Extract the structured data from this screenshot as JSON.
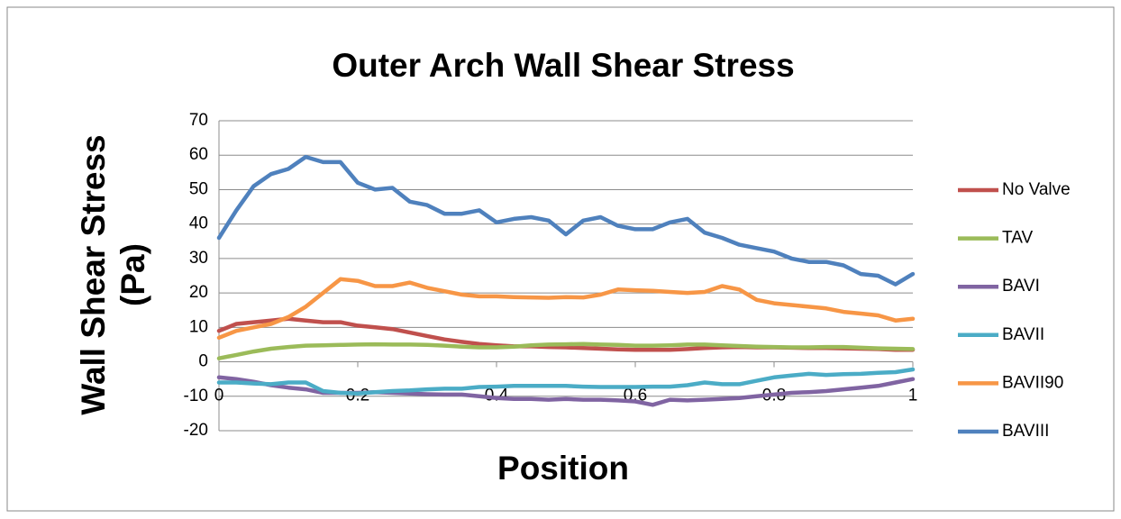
{
  "chart_data": {
    "type": "line",
    "title": "Outer Arch Wall Shear Stress",
    "xlabel": "Position",
    "ylabel": "Wall Shear Stress (Pa)",
    "x": [
      0,
      0.025,
      0.05,
      0.075,
      0.1,
      0.125,
      0.15,
      0.175,
      0.2,
      0.225,
      0.25,
      0.275,
      0.3,
      0.325,
      0.35,
      0.375,
      0.4,
      0.425,
      0.45,
      0.475,
      0.5,
      0.525,
      0.55,
      0.575,
      0.6,
      0.625,
      0.65,
      0.675,
      0.7,
      0.725,
      0.75,
      0.775,
      0.8,
      0.825,
      0.85,
      0.875,
      0.9,
      0.925,
      0.95,
      0.975,
      1
    ],
    "series": [
      {
        "name": "No Valve",
        "color": "#c0504d",
        "values": [
          9,
          11,
          11.5,
          12,
          12.5,
          12,
          11.5,
          11.5,
          10.5,
          10,
          9.5,
          8.5,
          7.5,
          6.5,
          5.8,
          5.2,
          4.8,
          4.5,
          4.5,
          4.3,
          4.2,
          4,
          3.8,
          3.6,
          3.5,
          3.5,
          3.5,
          3.7,
          4,
          4.2,
          4.3,
          4.2,
          4.2,
          4.1,
          4,
          4,
          3.9,
          3.8,
          3.7,
          3.5,
          3.5
        ]
      },
      {
        "name": "TAV",
        "color": "#9bbb59",
        "values": [
          1,
          2,
          3,
          3.8,
          4.3,
          4.7,
          4.8,
          4.9,
          5,
          5.1,
          5,
          5,
          4.9,
          4.7,
          4.4,
          4.2,
          4.2,
          4.4,
          4.8,
          5,
          5.1,
          5.2,
          5,
          4.9,
          4.7,
          4.7,
          4.8,
          5,
          5,
          4.8,
          4.6,
          4.4,
          4.3,
          4.2,
          4.2,
          4.3,
          4.3,
          4.1,
          3.9,
          3.8,
          3.7
        ]
      },
      {
        "name": "BAVI",
        "color": "#8064a2",
        "values": [
          -4.5,
          -5,
          -5.8,
          -6.8,
          -7.5,
          -8,
          -9,
          -9,
          -9,
          -8.8,
          -9,
          -9.2,
          -9.4,
          -9.5,
          -9.5,
          -10,
          -10.5,
          -10.8,
          -10.8,
          -11,
          -10.8,
          -11,
          -11,
          -11.2,
          -11.5,
          -12.5,
          -11,
          -11.2,
          -11,
          -10.8,
          -10.5,
          -10,
          -9.5,
          -9,
          -8.8,
          -8.5,
          -8,
          -7.5,
          -7,
          -6,
          -5
        ]
      },
      {
        "name": "BAVII",
        "color": "#4bacc6",
        "values": [
          -6,
          -6,
          -6.3,
          -6.5,
          -6,
          -6,
          -8.5,
          -9,
          -9.2,
          -8.8,
          -8.5,
          -8.3,
          -8,
          -7.8,
          -7.8,
          -7.3,
          -7.2,
          -7,
          -7,
          -7,
          -7,
          -7.2,
          -7.3,
          -7.3,
          -7.3,
          -7.2,
          -7.2,
          -6.8,
          -6,
          -6.5,
          -6.5,
          -5.5,
          -4.5,
          -4,
          -3.5,
          -3.8,
          -3.6,
          -3.5,
          -3.2,
          -3,
          -2.2
        ]
      },
      {
        "name": "BAVII90",
        "color": "#f79646",
        "values": [
          7,
          9,
          10,
          11,
          13,
          16,
          20,
          24,
          23.5,
          22,
          22,
          23,
          21.5,
          20.5,
          19.5,
          19,
          19,
          18.8,
          18.7,
          18.6,
          18.8,
          18.7,
          19.5,
          21,
          20.8,
          20.6,
          20.3,
          20,
          20.3,
          22,
          21,
          18,
          17,
          16.5,
          16,
          15.5,
          14.5,
          14,
          13.5,
          12,
          12.5
        ]
      },
      {
        "name": "BAVIII",
        "color": "#4f81bd",
        "values": [
          36,
          44,
          51,
          54.5,
          56,
          59.5,
          58,
          58,
          52,
          50,
          50.5,
          46.5,
          45.5,
          43,
          43,
          44,
          40.5,
          41.5,
          42,
          41,
          37,
          41,
          42,
          39.5,
          38.5,
          38.5,
          40.5,
          41.5,
          37.5,
          36,
          34,
          33,
          32,
          30,
          29,
          29,
          28,
          25.5,
          25,
          22.5,
          25.5
        ]
      }
    ],
    "xlim": [
      0,
      1
    ],
    "xticks": [
      0,
      0.2,
      0.4,
      0.6,
      0.8,
      1
    ],
    "ylim": [
      -20,
      70
    ],
    "yticks": [
      -20,
      -10,
      0,
      10,
      20,
      30,
      40,
      50,
      60,
      70
    ],
    "grid": true,
    "legend": "right"
  }
}
